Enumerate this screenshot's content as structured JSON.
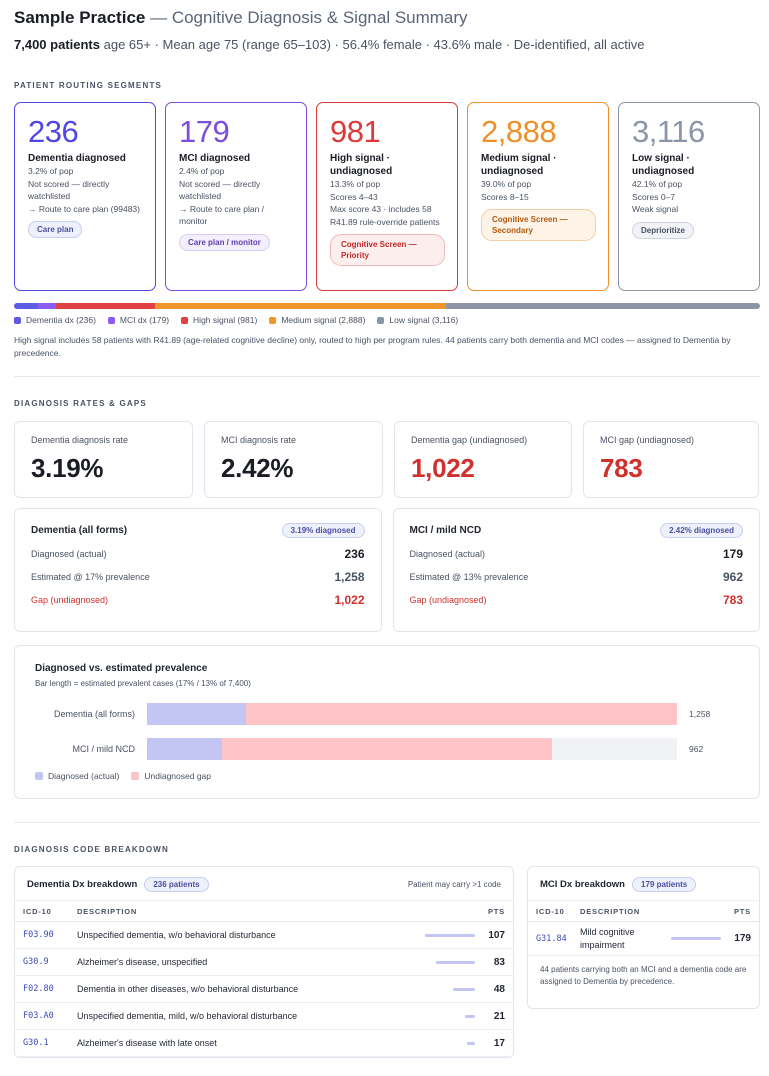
{
  "header": {
    "app": "Sample Practice",
    "separator": " — ",
    "subtitle": "Cognitive Diagnosis & Signal Summary",
    "patients": "7,400 patients",
    "meta": " age 65+ · Mean age 75 (range 65–103) · 56.4% female · 43.6% male · De-identified, all active"
  },
  "routing": {
    "section_label": "Patient routing segments",
    "segments": [
      {
        "number": "236",
        "name": "Dementia diagnosed",
        "lines": [
          "3.2% of pop",
          "Not scored — directly watchlisted",
          "→ Route to care plan (99483)"
        ],
        "action": "Care plan",
        "color": "#4f46e5",
        "pill_bg": "#eef0fb",
        "pill_border": "#c9cdf0",
        "pill_text": "#4a4f9e"
      },
      {
        "number": "179",
        "name": "MCI diagnosed",
        "lines": [
          "2.4% of pop",
          "Not scored — directly watchlisted",
          "→ Route to care plan / monitor"
        ],
        "action": "Care plan / monitor",
        "color": "#7c4dde",
        "pill_bg": "#f3effc",
        "pill_border": "#d9cdf5",
        "pill_text": "#5f3fb0"
      },
      {
        "number": "981",
        "name": "High signal · undiagnosed",
        "lines": [
          "13.3% of pop",
          "Scores 4–43",
          "Max score 43 · includes 58 R41.89 rule-override patients"
        ],
        "action": "Cognitive Screen — Priority",
        "color": "#dc3a3a",
        "pill_bg": "#fdeeee",
        "pill_border": "#f1b9b9",
        "pill_text": "#c62828"
      },
      {
        "number": "2,888",
        "name": "Medium signal · undiagnosed",
        "lines": [
          "39.0% of pop",
          "Scores 8–15"
        ],
        "action": "Cognitive Screen — Secondary",
        "color": "#ef8f2a",
        "pill_bg": "#fef3e7",
        "pill_border": "#f5cf9f",
        "pill_text": "#b15b0e"
      },
      {
        "number": "3,116",
        "name": "Low signal · undiagnosed",
        "lines": [
          "42.1% of pop",
          "Scores 0–7",
          "Weak signal"
        ],
        "action": "Deprioritize",
        "color": "#8b95a7",
        "pill_bg": "#f1f3f6",
        "pill_border": "#cfd4dc",
        "pill_text": "#4a5263"
      }
    ],
    "distribution": [
      {
        "label": "Dementia dx (236)",
        "value": 236,
        "color": "#5b5ce2"
      },
      {
        "label": "MCI dx (179)",
        "value": 179,
        "color": "#8b5cf6"
      },
      {
        "label": "High signal (981)",
        "value": 981,
        "color": "#e04141"
      },
      {
        "label": "Medium signal (2,888)",
        "value": 2888,
        "color": "#ee962c"
      },
      {
        "label": "Low signal (3,116)",
        "value": 3116,
        "color": "#8b95a7"
      }
    ],
    "note": "High signal includes 58 patients with R41.89 (age-related cognitive decline) only, routed to high per program rules. 44 patients carry both dementia and MCI codes — assigned to Dementia by precedence."
  },
  "rates": {
    "section_label": "Diagnosis rates & gaps",
    "kpis": [
      {
        "label": "Dementia diagnosis rate",
        "value": "3.19%",
        "color": "#1a1d24"
      },
      {
        "label": "MCI diagnosis rate",
        "value": "2.42%",
        "color": "#1a1d24"
      },
      {
        "label": "Dementia gap (undiagnosed)",
        "value": "1,022",
        "color": "#d0312d"
      },
      {
        "label": "MCI gap (undiagnosed)",
        "value": "783",
        "color": "#d0312d"
      }
    ],
    "gap_cards": [
      {
        "title": "Dementia (all forms)",
        "rate_pill": "3.19% diagnosed",
        "diag_label": "Diagnosed (actual)",
        "diag_value": "236",
        "est_label": "Estimated @ 17% prevalence",
        "est_value": "1,258",
        "gap_label": "Gap (undiagnosed)",
        "gap_value": "1,022"
      },
      {
        "title": "MCI / mild NCD",
        "rate_pill": "2.42% diagnosed",
        "diag_label": "Diagnosed (actual)",
        "diag_value": "179",
        "est_label": "Estimated @ 13% prevalence",
        "est_value": "962",
        "gap_label": "Gap (undiagnosed)",
        "gap_value": "783"
      }
    ],
    "prevalence": {
      "title": "Diagnosed vs. estimated prevalence",
      "subtitle": "Bar length = estimated prevalent cases (17% / 13% of 7,400)",
      "max": 1258,
      "rows": [
        {
          "label": "Dementia (all forms)",
          "diagnosed": 236,
          "estimated": 1258,
          "total_label": "1,258"
        },
        {
          "label": "MCI / mild NCD",
          "diagnosed": 179,
          "estimated": 962,
          "total_label": "962"
        }
      ],
      "legend_diagnosed": "Diagnosed (actual)",
      "legend_gap": "Undiagnosed gap"
    }
  },
  "codes": {
    "section_label": "Diagnosis code breakdown",
    "dementia": {
      "title": "Dementia Dx breakdown",
      "count_pill": "236 patients",
      "note": "Patient may carry >1 code",
      "col_code": "ICD-10",
      "col_desc": "DESCRIPTION",
      "col_pts": "PTS",
      "max": 107,
      "rows": [
        {
          "code": "F03.90",
          "desc": "Unspecified dementia, w/o behavioral disturbance",
          "pts": "107",
          "n": 107
        },
        {
          "code": "G30.9",
          "desc": "Alzheimer's disease, unspecified",
          "pts": "83",
          "n": 83
        },
        {
          "code": "F02.80",
          "desc": "Dementia in other diseases, w/o behavioral disturbance",
          "pts": "48",
          "n": 48
        },
        {
          "code": "F03.A0",
          "desc": "Unspecified dementia, mild, w/o behavioral disturbance",
          "pts": "21",
          "n": 21
        },
        {
          "code": "G30.1",
          "desc": "Alzheimer's disease with late onset",
          "pts": "17",
          "n": 17
        }
      ]
    },
    "mci": {
      "title": "MCI Dx breakdown",
      "count_pill": "179 patients",
      "col_code": "ICD-10",
      "col_desc": "DESCRIPTION",
      "col_pts": "PTS",
      "rows": [
        {
          "code": "G31.84",
          "desc": "Mild cognitive impairment",
          "pts": "179",
          "n": 179
        }
      ],
      "note": "44 patients carrying both an MCI and a dementia code are assigned to Dementia by precedence."
    }
  }
}
